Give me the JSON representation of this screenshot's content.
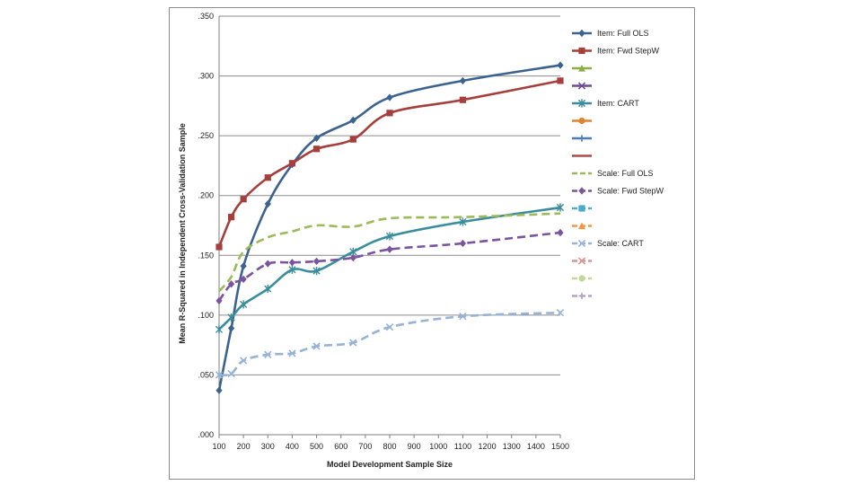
{
  "chart_data": {
    "type": "line",
    "title": "",
    "xlabel": "Model Development Sample Size",
    "ylabel": "Mean R-Squared in Independent Cross-Validation Sample",
    "xlim": [
      100,
      1500
    ],
    "ylim": [
      0,
      0.35
    ],
    "x_ticks": [
      100,
      200,
      300,
      400,
      500,
      600,
      700,
      800,
      900,
      1000,
      1100,
      1200,
      1300,
      1400,
      1500
    ],
    "x_tick_labels": [
      "100",
      "200",
      "300",
      "400",
      "500",
      "600",
      "700",
      "800",
      "900",
      "1000",
      "1100",
      "1200",
      "1300",
      "1400",
      "1500"
    ],
    "y_ticks": [
      0,
      0.05,
      0.1,
      0.15,
      0.2,
      0.25,
      0.3,
      0.35
    ],
    "y_tick_labels": [
      ".000",
      ".050",
      ".100",
      ".150",
      ".200",
      ".250",
      ".300",
      ".350"
    ],
    "grid": true,
    "legend_position": "right",
    "series": [
      {
        "name": "Item: Full OLS",
        "color": "#3C628F",
        "dash": "solid",
        "marker": "diamond",
        "x": [
          100,
          150,
          200,
          300,
          400,
          500,
          650,
          800,
          1100,
          1500
        ],
        "values": [
          0.037,
          0.089,
          0.141,
          0.193,
          0.226,
          0.248,
          0.263,
          0.282,
          0.296,
          0.309
        ]
      },
      {
        "name": "Item: Fwd StepW",
        "color": "#A63F3C",
        "dash": "solid",
        "marker": "square",
        "x": [
          100,
          150,
          200,
          300,
          400,
          500,
          650,
          800,
          1100,
          1500
        ],
        "values": [
          0.157,
          0.182,
          0.197,
          0.215,
          0.227,
          0.239,
          0.247,
          0.269,
          0.28,
          0.296
        ]
      },
      {
        "name": "",
        "color": "#8DAE46",
        "dash": "solid",
        "marker": "triangle",
        "x": [],
        "values": []
      },
      {
        "name": "",
        "color": "#6E4C93",
        "dash": "solid",
        "marker": "x",
        "x": [],
        "values": []
      },
      {
        "name": "Item: CART",
        "color": "#3A8E9B",
        "dash": "solid",
        "marker": "star",
        "x": [
          100,
          150,
          200,
          300,
          400,
          500,
          650,
          800,
          1100,
          1500
        ],
        "values": [
          0.088,
          0.098,
          0.109,
          0.122,
          0.138,
          0.137,
          0.153,
          0.166,
          0.178,
          0.19
        ]
      },
      {
        "name": "",
        "color": "#E0832F",
        "dash": "solid",
        "marker": "circle",
        "x": [],
        "values": []
      },
      {
        "name": "",
        "color": "#4E7AB5",
        "dash": "solid",
        "marker": "plus",
        "x": [],
        "values": []
      },
      {
        "name": "",
        "color": "#B04A48",
        "dash": "solid",
        "marker": "none",
        "x": [],
        "values": []
      },
      {
        "name": "Scale: Full OLS",
        "color": "#9BBB59",
        "dash": "dashed",
        "marker": "none",
        "x": [
          100,
          150,
          200,
          300,
          400,
          500,
          650,
          800,
          1100,
          1500
        ],
        "values": [
          0.12,
          0.132,
          0.153,
          0.165,
          0.17,
          0.175,
          0.174,
          0.181,
          0.182,
          0.185
        ]
      },
      {
        "name": "Scale: Fwd StepW",
        "color": "#7A54A0",
        "dash": "dashed",
        "marker": "diamond",
        "x": [
          100,
          150,
          200,
          300,
          400,
          500,
          650,
          800,
          1100,
          1500
        ],
        "values": [
          0.112,
          0.126,
          0.13,
          0.143,
          0.144,
          0.145,
          0.148,
          0.155,
          0.16,
          0.169
        ]
      },
      {
        "name": "",
        "color": "#4BACC6",
        "dash": "dashed",
        "marker": "square",
        "x": [],
        "values": []
      },
      {
        "name": "",
        "color": "#F79646",
        "dash": "dashed",
        "marker": "triangle",
        "x": [],
        "values": []
      },
      {
        "name": "Scale: CART",
        "color": "#95B3D7",
        "dash": "dashed",
        "marker": "x",
        "x": [
          100,
          150,
          200,
          300,
          400,
          500,
          650,
          800,
          1100,
          1500
        ],
        "values": [
          0.05,
          0.051,
          0.062,
          0.067,
          0.068,
          0.074,
          0.077,
          0.09,
          0.099,
          0.102
        ]
      },
      {
        "name": "",
        "color": "#D99694",
        "dash": "dashed",
        "marker": "x",
        "x": [],
        "values": []
      },
      {
        "name": "",
        "color": "#C3D69B",
        "dash": "dashed",
        "marker": "circle",
        "x": [],
        "values": []
      },
      {
        "name": "",
        "color": "#B3A2C7",
        "dash": "dashed",
        "marker": "plus",
        "x": [],
        "values": []
      }
    ]
  }
}
